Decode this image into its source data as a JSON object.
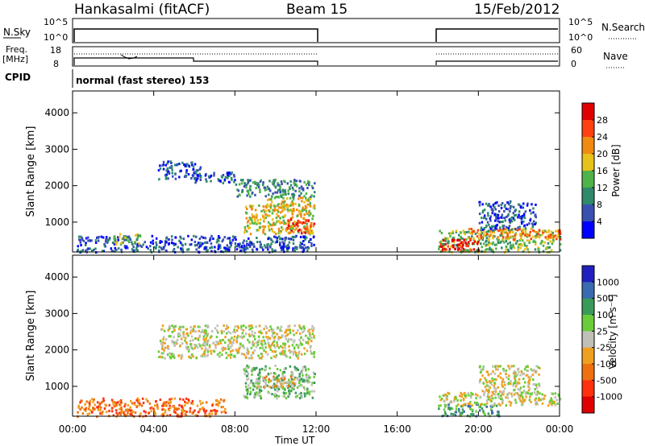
{
  "header": {
    "station": "Hankasalmi (fitACF)",
    "beam": "Beam 15",
    "date": "15/Feb/2012"
  },
  "aux_panels": {
    "nsky_label": "N.Sky",
    "nsky_ticks": [
      "10^5",
      "10^0"
    ],
    "nsearch_label": "N.Search",
    "nsearch_ticks": [
      "10^5",
      "10^0"
    ],
    "freq_label": "Freq.",
    "freq_unit": "[MHz]",
    "freq_ticks": [
      "18",
      "8"
    ],
    "nave_label": "Nave",
    "nave_ticks": [
      "60",
      "0"
    ],
    "cpid_label": "CPID",
    "cpid_text": "normal (fast stereo) 153"
  },
  "axes": {
    "ylabel": "Slant Range [km]",
    "xlabel": "Time UT",
    "y_ticks": [
      "1000",
      "2000",
      "3000",
      "4000"
    ],
    "x_ticks": [
      "00:00",
      "04:00",
      "08:00",
      "12:00",
      "16:00",
      "20:00",
      "00:00"
    ]
  },
  "power_scale": {
    "label": "Power [dB]",
    "ticks": [
      "4",
      "8",
      "12",
      "16",
      "20",
      "24",
      "28"
    ],
    "colors": [
      "#0000ff",
      "#3a50b0",
      "#2e8a6a",
      "#4fb34a",
      "#e6c21a",
      "#f08a10",
      "#ff4010",
      "#e00000"
    ]
  },
  "velocity_scale": {
    "label": "Velocity [m s⁻¹]",
    "ticks": [
      "1000",
      "500",
      "100",
      "25",
      "-25",
      "-100",
      "-500",
      "-1000"
    ],
    "colors": [
      "#2020c0",
      "#3a6ab0",
      "#3a9a5a",
      "#6acc3a",
      "#c0c0b8",
      "#f0a020",
      "#f07010",
      "#ff3010",
      "#e00000"
    ]
  },
  "chart_data": {
    "type": "heatmap",
    "x_range_hours": [
      0,
      24
    ],
    "y_range_km": [
      180,
      4600
    ],
    "data_gaps_hours": [
      [
        12,
        18
      ]
    ],
    "power_regions": [
      {
        "t0": 0.2,
        "t1": 11.9,
        "r0": 200,
        "r1": 650,
        "level": 1
      },
      {
        "t0": 2.0,
        "t1": 3.3,
        "r0": 400,
        "r1": 700,
        "level": 3
      },
      {
        "t0": 4.2,
        "t1": 6.3,
        "r0": 2200,
        "r1": 2700,
        "level": 1
      },
      {
        "t0": 5.8,
        "t1": 8.0,
        "r0": 2100,
        "r1": 2400,
        "level": 1
      },
      {
        "t0": 8.0,
        "t1": 11.9,
        "r0": 1700,
        "r1": 2200,
        "level": 2
      },
      {
        "t0": 8.4,
        "t1": 11.9,
        "r0": 700,
        "r1": 1500,
        "level": 4
      },
      {
        "t0": 10.5,
        "t1": 11.9,
        "r0": 700,
        "r1": 1100,
        "level": 6
      },
      {
        "t0": 9.5,
        "t1": 11.7,
        "r0": 1300,
        "r1": 1700,
        "level": 4
      },
      {
        "t0": 18.0,
        "t1": 24.0,
        "r0": 200,
        "r1": 800,
        "level": 3
      },
      {
        "t0": 18.0,
        "t1": 20.0,
        "r0": 250,
        "r1": 550,
        "level": 7
      },
      {
        "t0": 19.5,
        "t1": 24.0,
        "r0": 550,
        "r1": 850,
        "level": 5
      },
      {
        "t0": 20.0,
        "t1": 22.8,
        "r0": 800,
        "r1": 1600,
        "level": 1
      }
    ],
    "velocity_regions": [
      {
        "t0": 0.2,
        "t1": 7.5,
        "r0": 200,
        "r1": 700,
        "level": 6
      },
      {
        "t0": 4.2,
        "t1": 11.9,
        "r0": 1800,
        "r1": 2700,
        "level": 4
      },
      {
        "t0": 8.4,
        "t1": 11.9,
        "r0": 700,
        "r1": 1600,
        "level": 3
      },
      {
        "t0": 9.0,
        "t1": 11.0,
        "r0": 1000,
        "r1": 1300,
        "level": 5
      },
      {
        "t0": 18.0,
        "t1": 21.0,
        "r0": 200,
        "r1": 550,
        "level": 2
      },
      {
        "t0": 18.0,
        "t1": 24.0,
        "r0": 500,
        "r1": 850,
        "level": 4
      },
      {
        "t0": 20.0,
        "t1": 23.0,
        "r0": 800,
        "r1": 1600,
        "level": 4
      }
    ]
  }
}
